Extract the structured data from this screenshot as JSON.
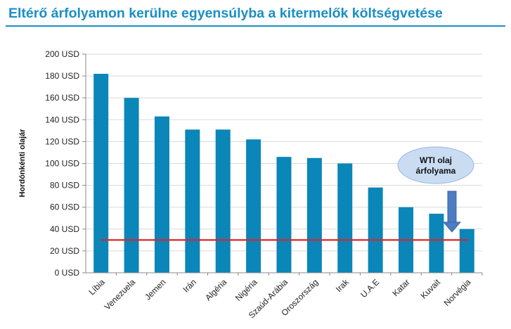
{
  "header": {
    "title": "Eltérő árfolyamon kerülne egyensúlyba a kitermelők költségvetése"
  },
  "colors": {
    "title": "#1a8fc4",
    "bar": "#0a86b9",
    "reference_line": "#d9252b",
    "callout_fill": "#c9dcf2",
    "arrow": "#4d7cc2"
  },
  "chart_data": {
    "type": "bar",
    "title": "Eltérő árfolyamon kerülne egyensúlyba a kitermelők költségvetése",
    "xlabel": "",
    "ylabel": "Hordónkénti olajár",
    "ylim": [
      0,
      200
    ],
    "ytick_step": 20,
    "ytick_labels": [
      "0 USD",
      "20 USD",
      "40 USD",
      "60 USD",
      "80 USD",
      "100 USD",
      "120 USD",
      "140 USD",
      "160 USD",
      "180 USD",
      "200 USD"
    ],
    "grid": true,
    "categories": [
      "Líbia",
      "Venezuela",
      "Jemen",
      "Irán",
      "Algéria",
      "Nigéria",
      "Szaúd-Arábia",
      "Oroszország",
      "Irak",
      "U.A.E",
      "Katar",
      "Kuvait",
      "Norvégia"
    ],
    "values": [
      182,
      160,
      143,
      131,
      131,
      122,
      106,
      105,
      100,
      78,
      60,
      54,
      40
    ],
    "reference_line": {
      "value": 30,
      "name": "WTI olaj árfolyama"
    },
    "annotation": {
      "lines": [
        "WTI olaj",
        "árfolyama"
      ],
      "target": "Norvégia"
    }
  }
}
